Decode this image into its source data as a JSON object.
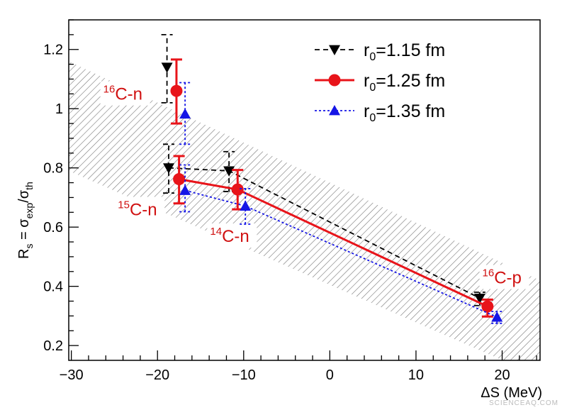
{
  "chart_data": {
    "type": "scatter",
    "title": "",
    "xlabel": "ΔS (MeV)",
    "ylabel": {
      "main": "R",
      "sub_s": "s",
      "eq": " = σ",
      "sub_exp": "exp",
      "slash": "/σ",
      "sub_th": "th"
    },
    "xlim": [
      -30.3,
      24.4
    ],
    "ylim": [
      0.15,
      1.3
    ],
    "xticks": [
      -30,
      -20,
      -10,
      0,
      10,
      20
    ],
    "yticks": [
      0.2,
      0.4,
      0.6,
      0.8,
      1,
      1.2
    ],
    "xtick_labels": [
      "−30",
      "−20",
      "−10",
      "0",
      "10",
      "20"
    ],
    "ytick_labels": [
      "0.2",
      "0.4",
      "0.6",
      "0.8",
      "1",
      "1.2"
    ],
    "grid": false,
    "legend_position": "top-right",
    "band": {
      "x": [
        -30.3,
        24.4
      ],
      "upper": [
        1.16,
        0.42
      ],
      "lower": [
        0.79,
        0.095
      ],
      "style": "hatched",
      "color": "#777777"
    },
    "series": [
      {
        "name": "r0=1.15 fm",
        "name_parts": [
          "r",
          "0",
          "=1.15 fm"
        ],
        "color": "#000000",
        "marker": "triangle-down",
        "line": "dashed",
        "points": [
          {
            "x": -18.9,
            "y": 1.14,
            "lo": 1.02,
            "hi": 1.25,
            "connect": false
          },
          {
            "x": -18.7,
            "y": 0.8,
            "lo": 0.715,
            "hi": 0.88
          },
          {
            "x": -11.7,
            "y": 0.79,
            "lo": 0.72,
            "hi": 0.855
          },
          {
            "x": 17.4,
            "y": 0.36,
            "lo": 0.335,
            "hi": 0.38
          }
        ]
      },
      {
        "name": "r0=1.25 fm",
        "name_parts": [
          "r",
          "0",
          "=1.25 fm"
        ],
        "color": "#e8141a",
        "marker": "circle",
        "line": "solid",
        "points": [
          {
            "x": -17.8,
            "y": 1.06,
            "lo": 0.95,
            "hi": 1.166,
            "connect": false
          },
          {
            "x": -17.5,
            "y": 0.762,
            "lo": 0.68,
            "hi": 0.84
          },
          {
            "x": -10.7,
            "y": 0.727,
            "lo": 0.66,
            "hi": 0.793
          },
          {
            "x": 18.3,
            "y": 0.332,
            "lo": 0.298,
            "hi": 0.355
          }
        ]
      },
      {
        "name": "r0=1.35 fm",
        "name_parts": [
          "r",
          "0",
          "=1.35 fm"
        ],
        "color": "#1515e6",
        "marker": "triangle-up",
        "line": "dotted",
        "points": [
          {
            "x": -16.8,
            "y": 0.982,
            "lo": 0.88,
            "hi": 1.088,
            "connect": false
          },
          {
            "x": -16.8,
            "y": 0.724,
            "lo": 0.652,
            "hi": 0.81
          },
          {
            "x": -9.8,
            "y": 0.671,
            "lo": 0.61,
            "hi": 0.73
          },
          {
            "x": 19.4,
            "y": 0.296,
            "lo": 0.275,
            "hi": 0.315
          }
        ]
      }
    ],
    "annotations": [
      {
        "sup": "16",
        "text": "C-n",
        "x": -26.3,
        "y": 1.03
      },
      {
        "sup": "15",
        "text": "C-n",
        "x": -24.6,
        "y": 0.64
      },
      {
        "sup": "14",
        "text": "C-n",
        "x": -13.9,
        "y": 0.55
      },
      {
        "sup": "16",
        "text": "C-p",
        "x": 17.7,
        "y": 0.41
      }
    ]
  },
  "watermark": "SCIENCEAQ.COM"
}
